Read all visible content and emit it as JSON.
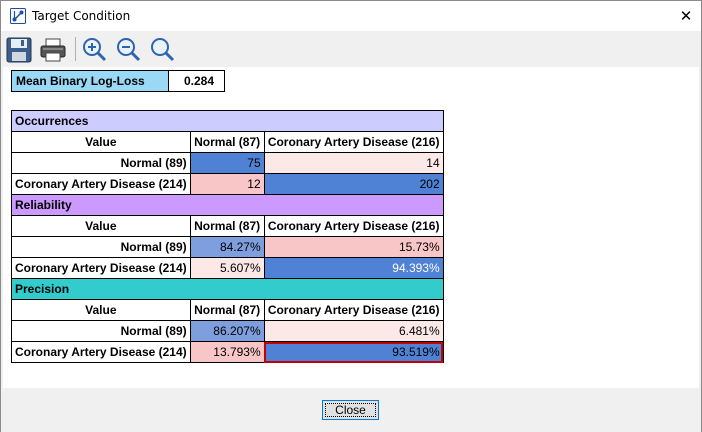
{
  "window": {
    "title": "Target Condition",
    "close_glyph": "✕"
  },
  "toolbar": {
    "buttons": [
      "save-icon",
      "print-icon",
      "zoom-in-icon",
      "zoom-out-icon",
      "zoom-fit-icon"
    ]
  },
  "metric": {
    "label": "Mean Binary Log-Loss",
    "value": "0.284"
  },
  "colors": {
    "metric_label_bg": "#99d9f5",
    "occurrences_header": "#ccccff",
    "reliability_header": "#cc99ff",
    "precision_header": "#33cccc",
    "strong_blue": "#4f81d5",
    "light_blue": "#7f9edd",
    "pink": "#f8c6c6",
    "light_pink": "#fde8e8",
    "highlight_border": "#c40000"
  },
  "sections": [
    {
      "title": "Occurrences",
      "columns": [
        "Value",
        "Normal (87)",
        "Coronary Artery Disease (216)"
      ],
      "rows": [
        {
          "label": "Normal (89)",
          "values": [
            "75",
            "14"
          ]
        },
        {
          "label": "Coronary Artery Disease (214)",
          "values": [
            "12",
            "202"
          ]
        }
      ]
    },
    {
      "title": "Reliability",
      "columns": [
        "Value",
        "Normal (87)",
        "Coronary Artery Disease (216)"
      ],
      "rows": [
        {
          "label": "Normal (89)",
          "values": [
            "84.27%",
            "15.73%"
          ]
        },
        {
          "label": "Coronary Artery Disease (214)",
          "values": [
            "5.607%",
            "94.393%"
          ]
        }
      ]
    },
    {
      "title": "Precision",
      "columns": [
        "Value",
        "Normal (87)",
        "Coronary Artery Disease (216)"
      ],
      "rows": [
        {
          "label": "Normal (89)",
          "values": [
            "86.207%",
            "6.481%"
          ]
        },
        {
          "label": "Coronary Artery Disease (214)",
          "values": [
            "13.793%",
            "93.519%"
          ]
        }
      ]
    }
  ],
  "footer": {
    "close_label": "Close"
  }
}
